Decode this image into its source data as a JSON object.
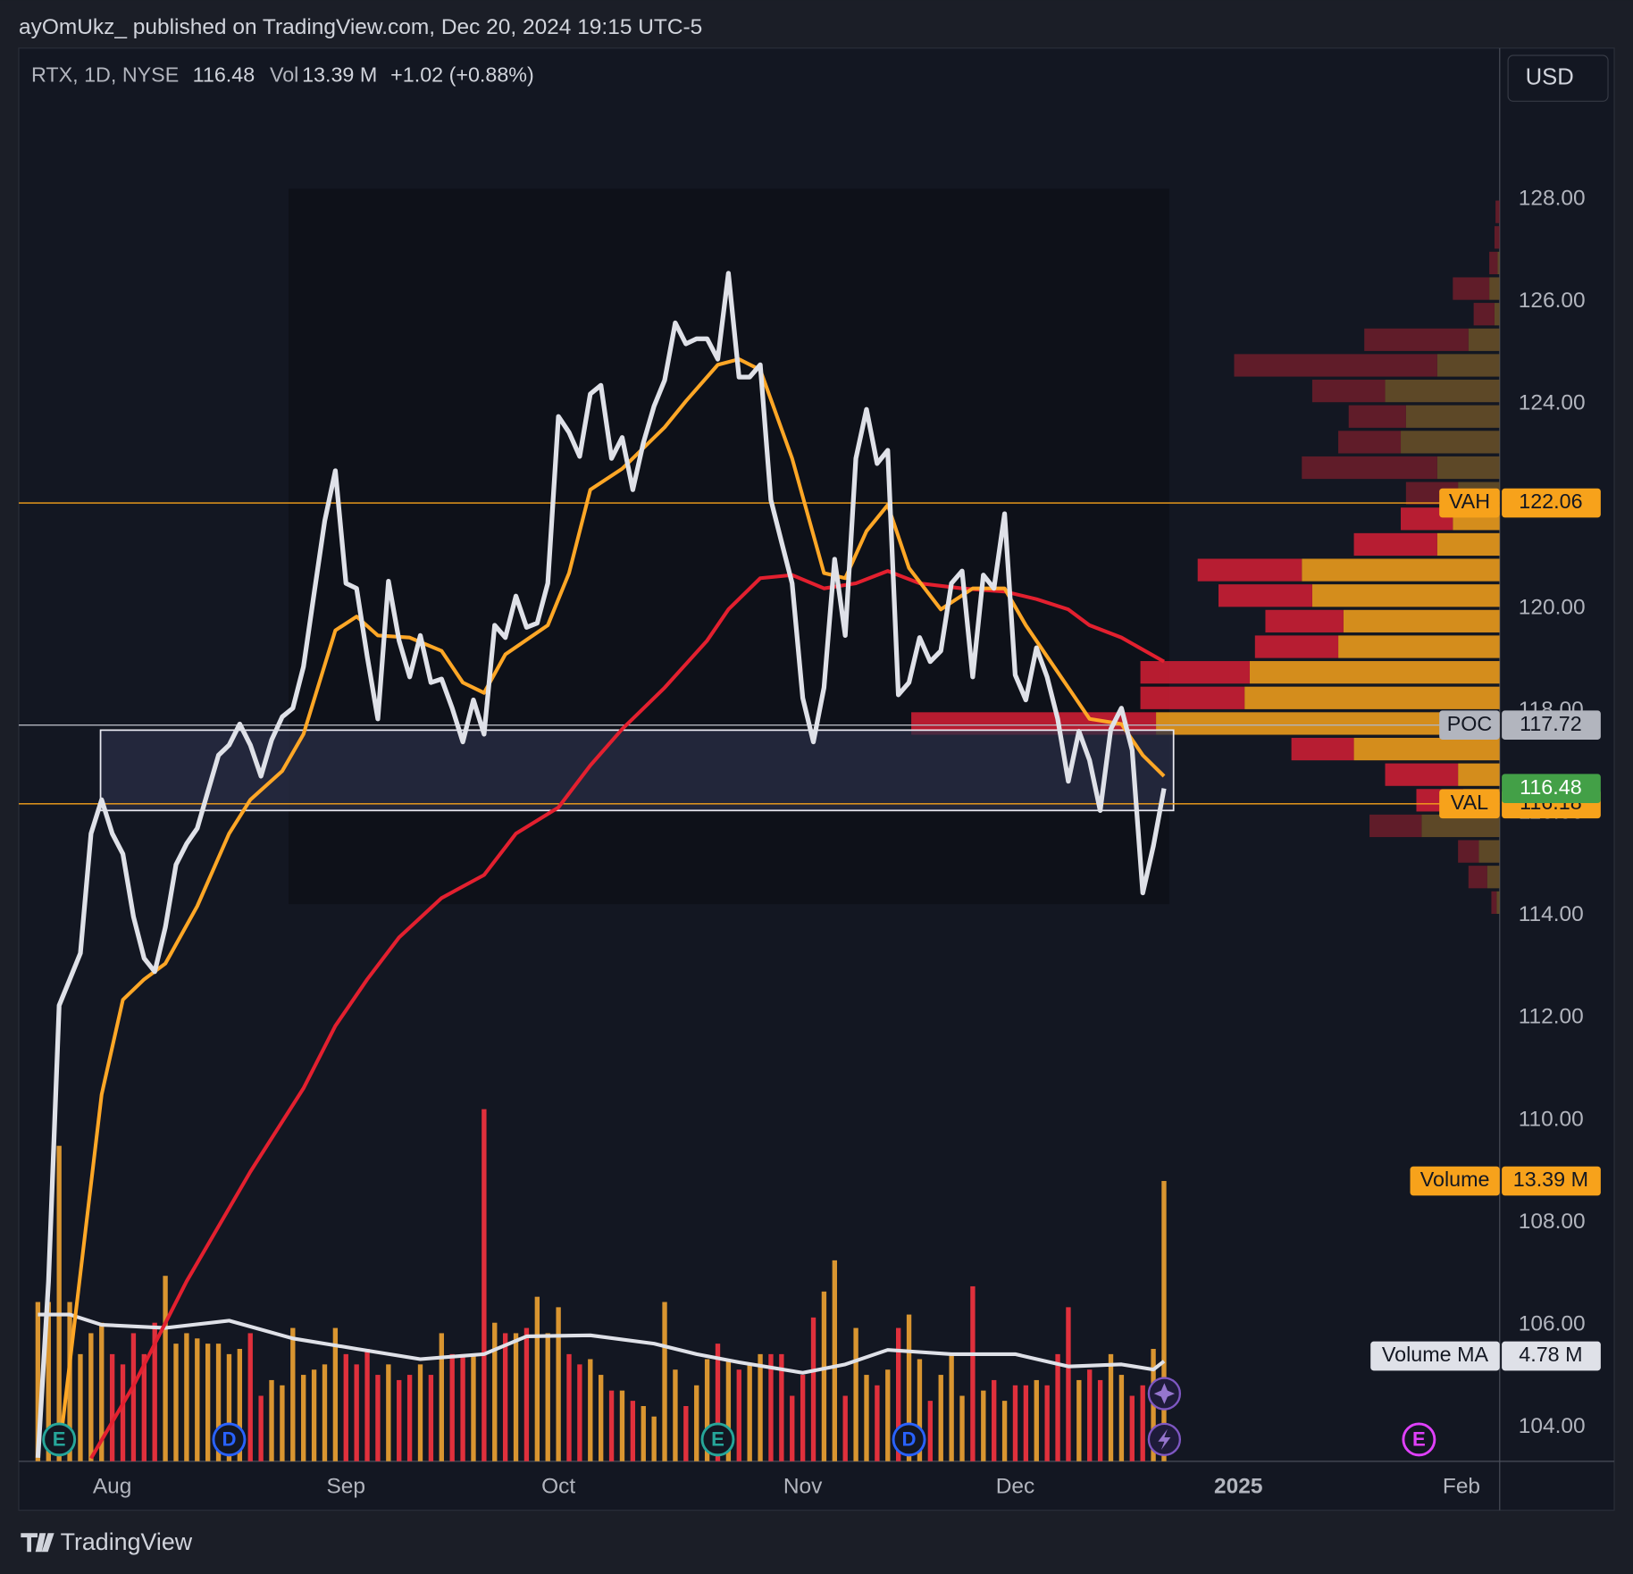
{
  "chart_data": {
    "type": "line",
    "title": "ayOmUkz_ published on TradingView.com, Dec 20, 2024 19:15 UTC-5",
    "symbol": "RTX, 1D, NYSE",
    "vol_label": "Vol",
    "change": "+1.02 (+0.88%)",
    "currency": "USD",
    "brand": "TradingView",
    "xlim": [
      -1.8,
      137.6
    ],
    "xticks": [
      {
        "value": 7,
        "label": "Aug"
      },
      {
        "value": 29,
        "label": "Sep"
      },
      {
        "value": 49,
        "label": "Oct"
      },
      {
        "value": 72,
        "label": "Nov"
      },
      {
        "value": 92,
        "label": "Dec"
      },
      {
        "value": 113,
        "label": "2025"
      },
      {
        "value": 134,
        "label": "Feb"
      }
    ],
    "ylim": [
      103.33,
      130.95
    ],
    "yticks": [
      {
        "value": 104,
        "label": "104.00"
      },
      {
        "value": 106,
        "label": "106.00"
      },
      {
        "value": 108,
        "label": "108.00"
      },
      {
        "value": 110,
        "label": "110.00"
      },
      {
        "value": 112,
        "label": "112.00"
      },
      {
        "value": 114,
        "label": "114.00"
      },
      {
        "value": 116,
        "label": "116.00"
      },
      {
        "value": 118,
        "label": "118.00"
      },
      {
        "value": 120,
        "label": "120.00"
      },
      {
        "value": 122,
        "label": "122.00"
      },
      {
        "value": 124,
        "label": "124.00"
      },
      {
        "value": 126,
        "label": "126.00"
      },
      {
        "value": 128,
        "label": "128.00"
      }
    ],
    "y2lim": [
      0,
      67.5
    ],
    "series": [
      {
        "color": "#dfe1e8",
        "x": [
          0,
          1,
          2,
          3,
          4,
          5,
          6,
          7,
          8,
          9,
          10,
          11,
          12,
          13,
          14,
          15,
          16,
          17,
          18,
          19,
          20,
          21,
          22,
          23,
          24,
          25,
          26,
          27,
          28,
          29,
          30,
          31,
          32,
          33,
          34,
          35,
          36,
          37,
          38,
          39,
          40,
          41,
          42,
          43,
          44,
          45,
          46,
          47,
          48,
          49,
          50,
          51,
          52,
          53,
          54,
          55,
          56,
          57,
          58,
          59,
          60,
          61,
          62,
          63,
          64,
          65,
          66,
          67,
          68,
          69,
          70,
          71,
          72,
          73,
          74,
          75,
          76,
          77,
          78,
          79,
          80,
          81,
          82,
          83,
          84,
          85,
          86,
          87,
          88,
          89,
          90,
          91,
          92,
          93,
          94,
          95,
          96,
          97,
          98,
          99,
          100,
          101,
          102,
          103,
          104,
          105,
          106
        ],
        "values": [
          103.4,
          106.85,
          112.24,
          112.75,
          113.26,
          115.6,
          116.26,
          115.6,
          115.2,
          113.97,
          113.16,
          112.9,
          113.77,
          114.99,
          115.4,
          115.7,
          116.42,
          117.13,
          117.33,
          117.74,
          117.33,
          116.72,
          117.43,
          117.88,
          118.05,
          118.86,
          120.29,
          121.71,
          122.69,
          120.49,
          120.39,
          119.06,
          117.84,
          120.53,
          119.37,
          118.66,
          119.47,
          118.55,
          118.62,
          118.05,
          117.39,
          118.21,
          117.54,
          119.67,
          119.43,
          120.24,
          119.63,
          119.71,
          120.49,
          123.75,
          123.44,
          122.97,
          124.19,
          124.36,
          122.93,
          123.34,
          122.32,
          123.24,
          123.95,
          124.46,
          125.58,
          125.17,
          125.27,
          125.27,
          124.87,
          126.55,
          124.52,
          124.52,
          124.76,
          122.12,
          121.3,
          120.49,
          118.25,
          117.39,
          118.45,
          120.96,
          119.47,
          122.93,
          123.89,
          122.83,
          123.09,
          118.31,
          118.55,
          119.43,
          118.96,
          119.17,
          120.49,
          120.73,
          118.66,
          120.65,
          120.39,
          121.85,
          118.7,
          118.21,
          119.23,
          118.66,
          117.84,
          116.62,
          117.6,
          117.03,
          116.05,
          117.64,
          118.05,
          117.23,
          114.44,
          115.36,
          116.48
        ]
      },
      {
        "color": "#ffa726",
        "x": [
          2,
          6,
          8,
          10,
          12,
          15,
          18,
          20,
          23,
          25,
          28,
          30,
          32,
          35,
          38,
          40,
          42,
          44,
          48,
          50,
          52,
          55,
          59,
          61,
          64,
          66,
          68,
          71,
          74,
          76,
          78,
          80,
          82,
          85,
          88,
          91,
          93,
          95,
          97,
          99,
          102,
          104,
          106
        ],
        "values": [
          103.5,
          110.5,
          112.35,
          112.75,
          113.06,
          114.18,
          115.6,
          116.26,
          116.82,
          117.54,
          119.57,
          119.84,
          119.47,
          119.43,
          119.17,
          118.55,
          118.35,
          119.1,
          119.67,
          120.69,
          122.32,
          122.73,
          123.54,
          124.05,
          124.76,
          124.87,
          124.66,
          122.93,
          120.69,
          120.59,
          121.51,
          122.02,
          120.79,
          119.98,
          120.39,
          120.39,
          119.67,
          119.06,
          118.45,
          117.84,
          117.74,
          117.13,
          116.72
        ]
      },
      {
        "color": "#e3202f",
        "x": [
          5,
          9,
          14,
          20,
          25,
          28,
          31,
          34,
          38,
          42,
          45,
          49,
          52,
          55,
          59,
          63,
          65,
          68,
          71,
          74,
          77,
          80,
          83,
          87,
          91,
          94,
          97,
          99,
          102,
          106
        ],
        "values": [
          103.39,
          104.81,
          106.85,
          108.99,
          110.62,
          111.84,
          112.75,
          113.57,
          114.34,
          114.79,
          115.6,
          116.11,
          116.93,
          117.64,
          118.45,
          119.37,
          119.98,
          120.59,
          120.65,
          120.39,
          120.49,
          120.73,
          120.49,
          120.39,
          120.33,
          120.18,
          119.98,
          119.67,
          119.43,
          118.96
        ]
      },
      {
        "name": "Volume",
        "type": "bar",
        "axis": "y2",
        "color": "#f7a21b",
        "up_color": "#d99530",
        "down_color": "#e0303c",
        "values": [
          7.61,
          7.61,
          15.07,
          7.61,
          5.12,
          6.12,
          6.62,
          5.12,
          4.63,
          6.12,
          5.12,
          6.62,
          8.86,
          5.62,
          6.12,
          5.87,
          5.62,
          5.62,
          5.12,
          5.37,
          6.12,
          3.13,
          3.88,
          3.63,
          6.37,
          4.13,
          4.38,
          4.63,
          6.37,
          5.12,
          4.63,
          5.37,
          4.13,
          4.63,
          3.88,
          4.13,
          4.63,
          4.13,
          6.12,
          5.12,
          5.12,
          5.12,
          16.82,
          6.62,
          6.12,
          6.12,
          6.37,
          7.86,
          6.12,
          7.36,
          5.12,
          4.63,
          4.88,
          4.13,
          3.38,
          3.38,
          2.89,
          2.64,
          2.14,
          7.61,
          4.38,
          2.64,
          3.63,
          4.88,
          5.62,
          4.88,
          4.38,
          4.63,
          5.12,
          5.12,
          5.12,
          3.13,
          4.13,
          6.87,
          8.11,
          9.6,
          3.13,
          6.37,
          4.13,
          3.63,
          4.38,
          6.37,
          7.01,
          4.88,
          2.89,
          4.13,
          5.12,
          3.13,
          8.36,
          3.38,
          3.88,
          2.89,
          3.63,
          3.63,
          3.88,
          3.63,
          5.12,
          7.36,
          3.88,
          4.38,
          3.88,
          5.12,
          4.13,
          3.13,
          3.63,
          5.37,
          13.39
        ],
        "value_labels": [
          null,
          null,
          null,
          null,
          null,
          null,
          null,
          null,
          null,
          null,
          null,
          null,
          null,
          null,
          null,
          null,
          null,
          null,
          null,
          null,
          null,
          null,
          null,
          null,
          null,
          null,
          null,
          null,
          null,
          null,
          null,
          null,
          null,
          null,
          null,
          null,
          null,
          null,
          null,
          null,
          null,
          null,
          null,
          null,
          null,
          null,
          null,
          null,
          null,
          null,
          null,
          null,
          null,
          null,
          null,
          null,
          null,
          null,
          null,
          null,
          null,
          null,
          null,
          null,
          null,
          null,
          null,
          null,
          null,
          null,
          null,
          null,
          null,
          null,
          null,
          null,
          null,
          null,
          null,
          null,
          null,
          null,
          null,
          null,
          null,
          null,
          null,
          null,
          null,
          null,
          null,
          null,
          null,
          null,
          null,
          null,
          null,
          null,
          null,
          null,
          null,
          null,
          null,
          null,
          null,
          null,
          "13.39 M"
        ]
      },
      {
        "name": "Volume MA",
        "axis": "y2",
        "color": "#dfe1e8",
        "x": [
          0,
          3,
          6,
          12,
          18,
          24,
          30,
          36,
          42,
          46,
          52,
          58,
          62,
          66,
          72,
          76,
          80,
          86,
          92,
          97,
          102,
          105,
          106
        ],
        "values": [
          7.01,
          7.01,
          6.52,
          6.37,
          6.72,
          5.87,
          5.37,
          4.88,
          5.12,
          5.97,
          6.02,
          5.62,
          5.12,
          4.73,
          4.23,
          4.63,
          5.32,
          5.12,
          5.12,
          4.53,
          4.63,
          4.38,
          4.78
        ],
        "value_labels": [
          null,
          null,
          null,
          null,
          null,
          null,
          null,
          null,
          null,
          null,
          null,
          null,
          null,
          null,
          null,
          null,
          null,
          null,
          null,
          null,
          null,
          null,
          "4.78 M"
        ]
      }
    ],
    "levels": [
      {
        "name": "VAH",
        "value": 122.06,
        "color": "#f7a21b"
      },
      {
        "name": "POC",
        "value": 117.72,
        "color": "#b2b5be"
      },
      {
        "name": "VAL",
        "value": 116.18,
        "color": "#f7a21b"
      }
    ],
    "last_price_color": "#43a047",
    "volume_profile": {
      "xlim": [
        0,
        1422
      ],
      "prices": [
        127.75,
        127.25,
        126.75,
        126.25,
        125.75,
        125.25,
        124.75,
        124.25,
        123.75,
        123.25,
        122.75,
        122.25,
        121.75,
        121.25,
        120.75,
        120.25,
        119.75,
        119.25,
        118.75,
        118.25,
        117.75,
        117.25,
        116.75,
        116.25,
        115.75,
        115.25,
        114.75,
        114.25
      ],
      "up": [
        0,
        0,
        2,
        10,
        5,
        30,
        60,
        110,
        90,
        95,
        60,
        40,
        45,
        60,
        190,
        180,
        150,
        155,
        240,
        245,
        330,
        140,
        40,
        35,
        75,
        20,
        12,
        3
      ],
      "down": [
        4,
        5,
        8,
        35,
        20,
        100,
        195,
        70,
        55,
        60,
        130,
        50,
        50,
        80,
        100,
        90,
        75,
        80,
        105,
        100,
        235,
        60,
        70,
        45,
        50,
        20,
        18,
        5
      ],
      "up_color": "#f7a21b",
      "down_color": "#d51f35",
      "up_color_dim": "#6b5128",
      "down_color_dim": "#6e1d2a"
    },
    "range_box": {
      "xlim": [
        23.6,
        106.5
      ],
      "ylim": [
        114.22,
        128.2
      ],
      "color": "#0e1119"
    },
    "zone": {
      "xlim": [
        5.9,
        106.9
      ],
      "ylim": [
        116.05,
        117.62
      ],
      "color": "#2a2e45"
    },
    "events": [
      {
        "x": 2,
        "label": "E",
        "color": "#26a69a"
      },
      {
        "x": 18,
        "label": "D",
        "color": "#2962ff"
      },
      {
        "x": 64,
        "label": "E",
        "color": "#26a69a"
      },
      {
        "x": 82,
        "label": "D",
        "color": "#2962ff"
      },
      {
        "x": 130,
        "label": "E",
        "color": "#e040fb"
      }
    ]
  }
}
